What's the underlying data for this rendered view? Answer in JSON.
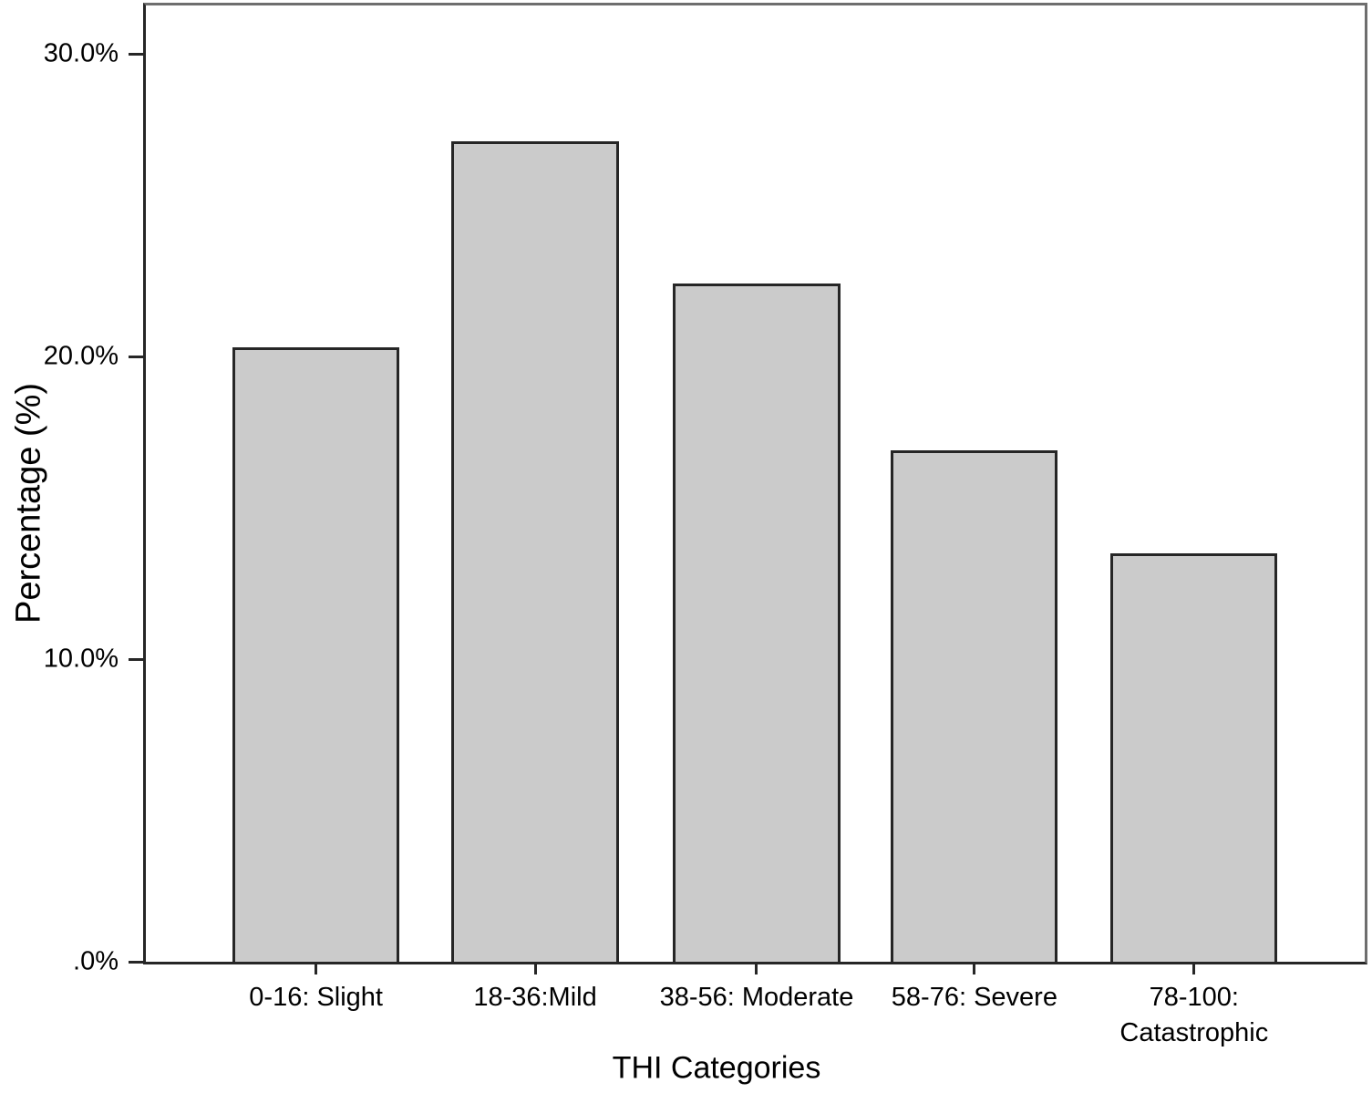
{
  "chart_data": {
    "type": "bar",
    "title": "",
    "categories": [
      "0-16: Slight",
      "18-36:Mild",
      "38-56: Moderate",
      "58-76: Severe",
      "78-100: Catastrophic"
    ],
    "values": [
      20.3,
      27.1,
      22.4,
      16.9,
      13.5
    ],
    "xlabel": "THI Categories",
    "ylabel": "Percentage (%)",
    "ylim": [
      0,
      31.6
    ],
    "yticks": [
      {
        "value": 0,
        "label": ".0%"
      },
      {
        "value": 10,
        "label": "10.0%"
      },
      {
        "value": 20,
        "label": "20.0%"
      },
      {
        "value": 30,
        "label": "30.0%"
      }
    ],
    "grid": false,
    "legend_position": "none",
    "bar_fill_color": "#cbcbcb",
    "bar_border_color": "#262626",
    "axis_color": "#262626",
    "frame_color": "#6e6e6e"
  }
}
